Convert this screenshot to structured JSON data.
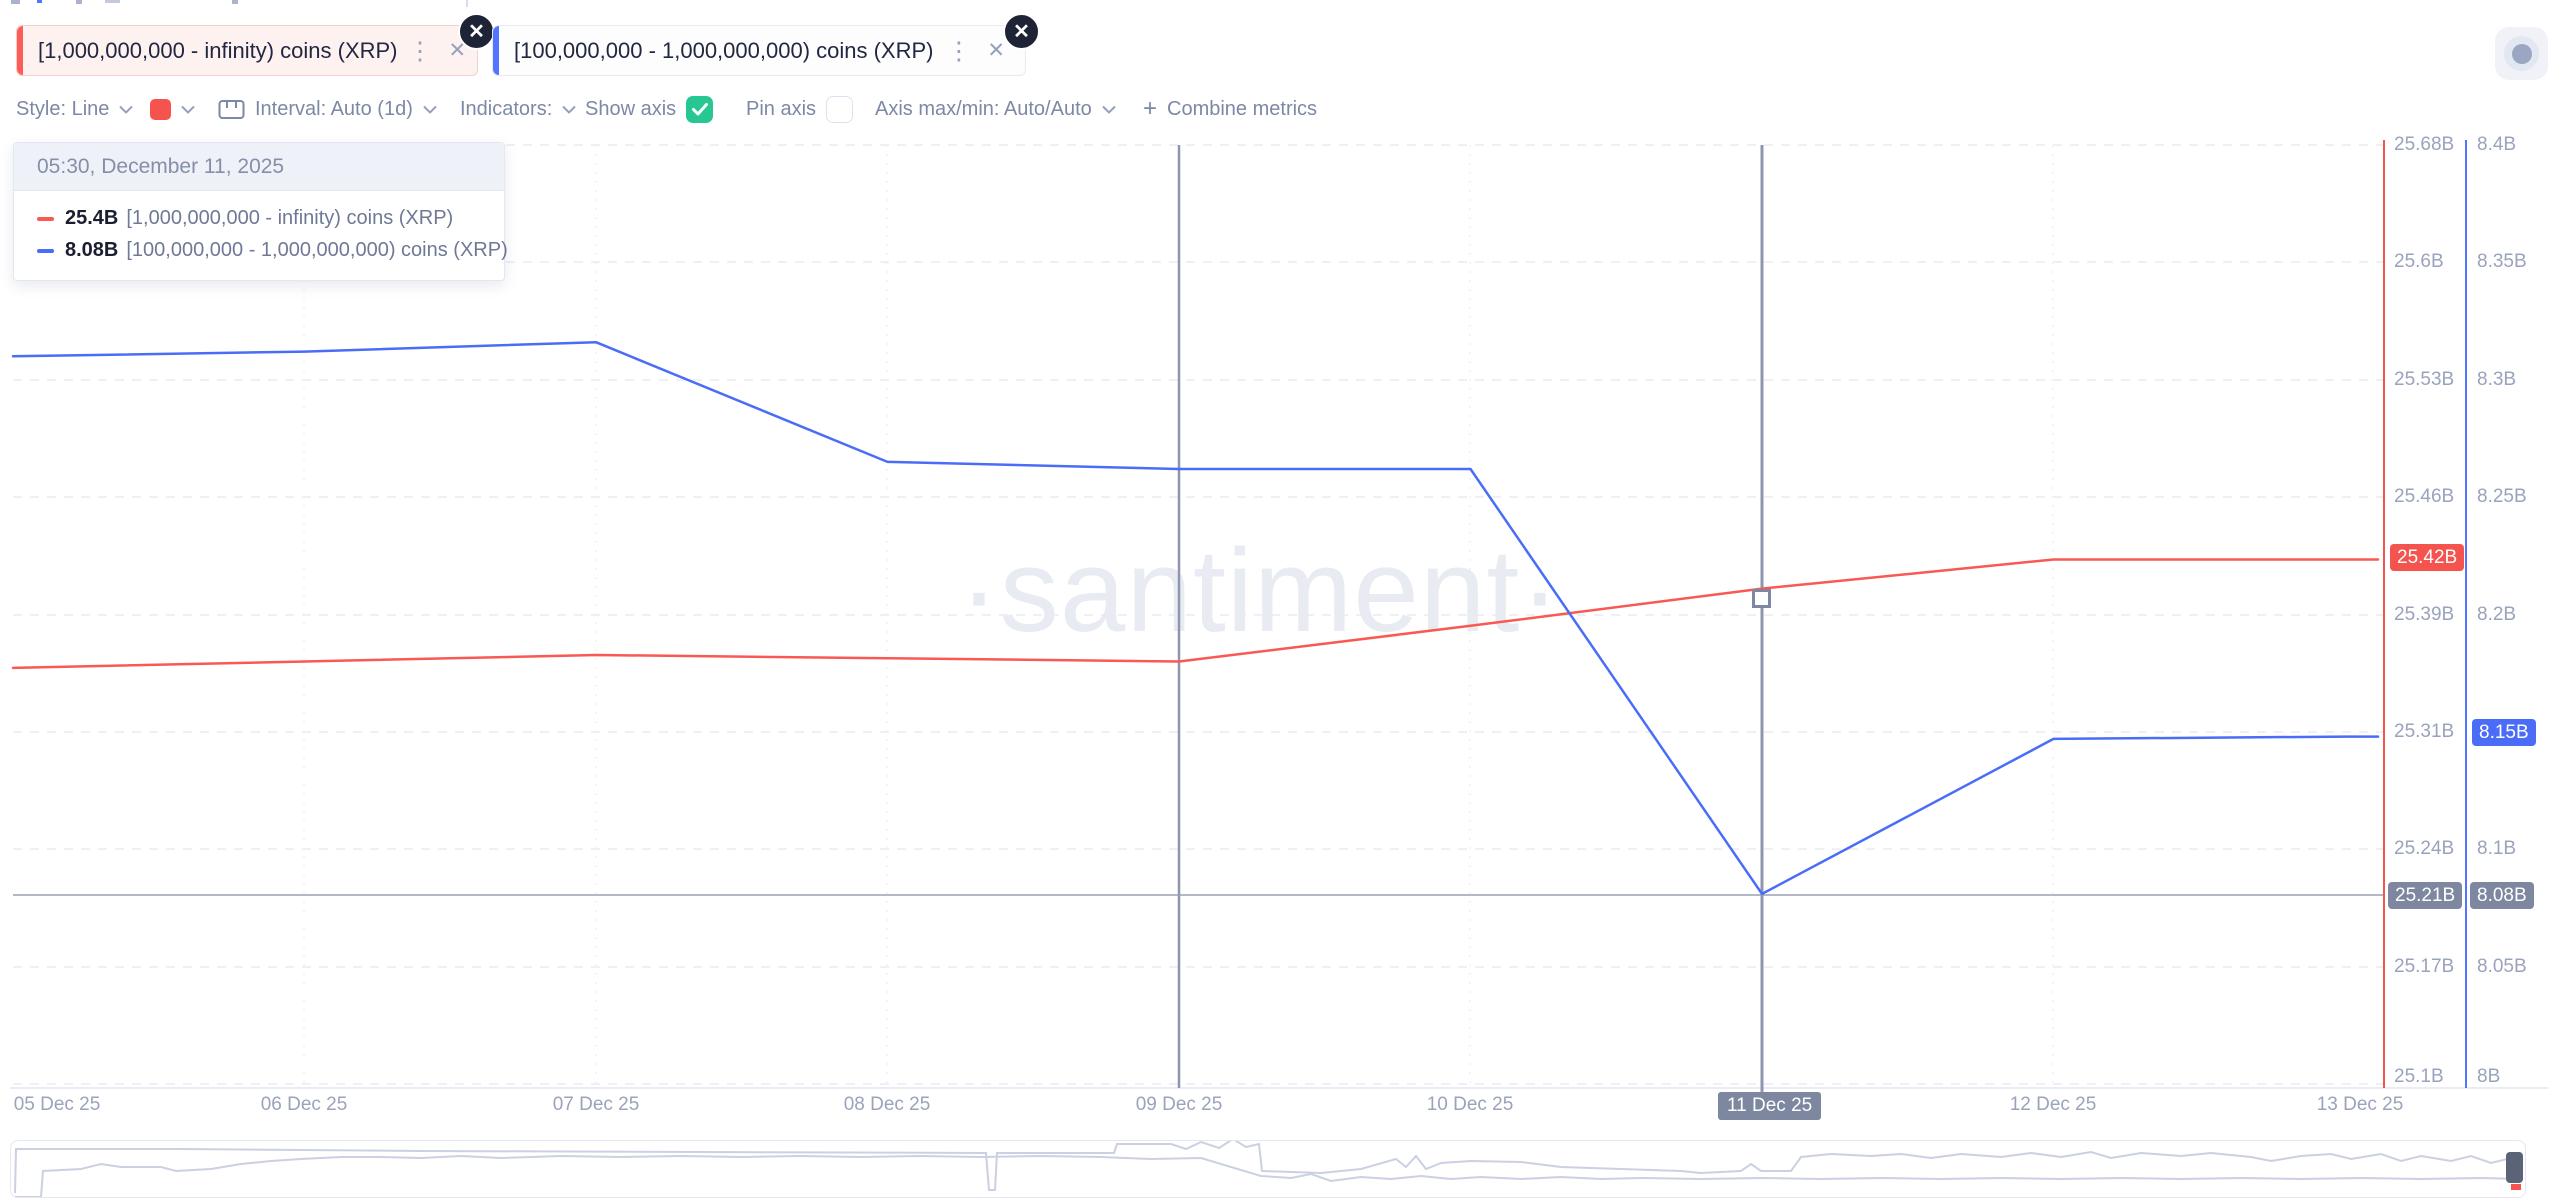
{
  "page": {
    "watermark": "·santiment·"
  },
  "tabs": [
    {
      "label": "[1,000,000,000 - infinity) coins (XRP)",
      "accent": "#fd5c57",
      "menu_icon": "⋮",
      "close_icon": "✕",
      "coin_logo": "✕"
    },
    {
      "label": "[100,000,000 - 1,000,000,000) coins (XRP)",
      "accent": "#5275ff",
      "menu_icon": "⋮",
      "close_icon": "✕",
      "coin_logo": "✕"
    }
  ],
  "toolbar": {
    "style_label": "Style: Line",
    "swatch_color": "#f4534e",
    "interval_label": "Interval: Auto (1d)",
    "indicators_label": "Indicators:",
    "show_axis_label": "Show axis",
    "show_axis_checked": true,
    "pin_axis_label": "Pin axis",
    "pin_axis_checked": false,
    "axis_maxmin_label": "Axis max/min: Auto/Auto",
    "combine_plus": "+",
    "combine_label": "Combine metrics",
    "checkbox_on_color": "#27c794"
  },
  "tooltip": {
    "time": "05:30, December 11, 2025",
    "rows": [
      {
        "value": "25.4B",
        "label": "[1,000,000,000 - infinity) coins (XRP)"
      },
      {
        "value": "8.08B",
        "label": "[100,000,000 - 1,000,000,000) coins (XRP)"
      }
    ]
  },
  "axis_red": {
    "color": "#f4534e",
    "labels": [
      "25.68B",
      "25.6B",
      "25.53B",
      "25.46B",
      "25.39B",
      "25.31B",
      "25.24B",
      "25.17B",
      "25.1B"
    ],
    "current_badge": "25.42B",
    "hover_badge": "25.21B"
  },
  "axis_blue": {
    "color": "#5275ff",
    "labels": [
      "8.4B",
      "8.35B",
      "8.3B",
      "8.25B",
      "8.2B",
      "8.1B",
      "8.05B",
      "8B"
    ],
    "current_badge": "8.15B",
    "hover_badge": "8.08B"
  },
  "x_axis": {
    "labels": [
      "05 Dec 25",
      "06 Dec 25",
      "07 Dec 25",
      "08 Dec 25",
      "09 Dec 25",
      "10 Dec 25",
      "12 Dec 25",
      "13 Dec 25"
    ],
    "hover_badge": "11 Dec 25"
  },
  "chart_data": {
    "type": "line",
    "title": "",
    "x": [
      "05 Dec 25",
      "06 Dec 25",
      "07 Dec 25",
      "08 Dec 25",
      "09 Dec 25",
      "10 Dec 25",
      "11 Dec 25",
      "12 Dec 25",
      "13 Dec 25"
    ],
    "series": [
      {
        "name": "[1,000,000,000 - infinity) coins (XRP)",
        "color": "#fa5853",
        "unit": "B",
        "axis_range": [
          25.1,
          25.68
        ],
        "values": [
          25.357,
          25.361,
          25.365,
          25.363,
          25.361,
          25.383,
          25.406,
          25.424,
          25.424
        ]
      },
      {
        "name": "[100,000,000 - 1,000,000,000) coins (XRP)",
        "color": "#4a6df8",
        "unit": "B",
        "axis_range": [
          8.0,
          8.4
        ],
        "values": [
          8.31,
          8.312,
          8.316,
          8.265,
          8.262,
          8.262,
          8.081,
          8.147,
          8.148
        ]
      }
    ],
    "hover_point": {
      "date": "11 Dec 25",
      "time": "05:30",
      "red_value": "25.4B",
      "blue_value": "8.08B"
    },
    "grid": true,
    "legend_position": "floating-tooltip"
  }
}
